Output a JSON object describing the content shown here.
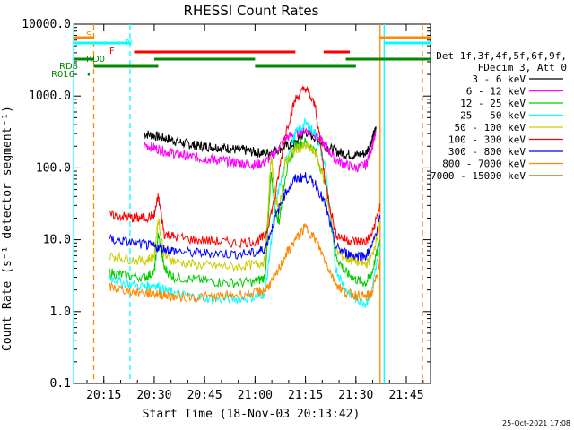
{
  "chart_data": {
    "type": "line",
    "title": "RHESSI Count Rates",
    "xlabel": "Start Time (18-Nov-03 20:13:42)",
    "ylabel": "Count Rate (s⁻¹ detector segment⁻¹)",
    "yscale": "log",
    "ylim": [
      0.1,
      10000
    ],
    "xlim_minutes": [
      20.1,
      21.87
    ],
    "xticks": [
      {
        "t": 20.25,
        "label": "20:15"
      },
      {
        "t": 20.5,
        "label": "20:30"
      },
      {
        "t": 20.75,
        "label": "20:45"
      },
      {
        "t": 21.0,
        "label": "21:00"
      },
      {
        "t": 21.25,
        "label": "21:15"
      },
      {
        "t": 21.5,
        "label": "21:30"
      },
      {
        "t": 21.75,
        "label": "21:45"
      }
    ],
    "yticks": [
      {
        "v": 0.1,
        "label": "0.1"
      },
      {
        "v": 1,
        "label": "1.0"
      },
      {
        "v": 10,
        "label": "10.0"
      },
      {
        "v": 100,
        "label": "100.0"
      },
      {
        "v": 1000,
        "label": "1000.0"
      },
      {
        "v": 10000,
        "label": "10000.0"
      }
    ],
    "legend_header": [
      "Det 1f,3f,4f,5f,6f,9f,",
      "FDecim 3, Att 0"
    ],
    "series": [
      {
        "name": "3 - 6 keV",
        "color": "#000000",
        "x": [
          20.45,
          20.5,
          20.55,
          20.6,
          20.65,
          20.7,
          20.75,
          20.8,
          20.85,
          20.9,
          20.95,
          21.0,
          21.05,
          21.1,
          21.15,
          21.2,
          21.25,
          21.3,
          21.35,
          21.4,
          21.45,
          21.5,
          21.55,
          21.58,
          21.6
        ],
        "y": [
          300,
          280,
          260,
          240,
          220,
          205,
          200,
          195,
          190,
          180,
          175,
          165,
          160,
          175,
          200,
          220,
          320,
          260,
          200,
          170,
          155,
          150,
          160,
          250,
          350
        ]
      },
      {
        "name": "6 - 12 keV",
        "color": "#ff00ff",
        "x": [
          20.45,
          20.5,
          20.55,
          20.6,
          20.65,
          20.7,
          20.75,
          20.8,
          20.85,
          20.9,
          20.95,
          21.0,
          21.05,
          21.1,
          21.15,
          21.2,
          21.25,
          21.3,
          21.35,
          21.4,
          21.45,
          21.5,
          21.55,
          21.58,
          21.6
        ],
        "y": [
          210,
          190,
          170,
          160,
          150,
          140,
          135,
          130,
          125,
          120,
          115,
          110,
          120,
          160,
          260,
          300,
          340,
          290,
          200,
          130,
          110,
          100,
          110,
          200,
          300
        ]
      },
      {
        "name": "12 - 25 keV",
        "color": "#00cc00",
        "x": [
          20.28,
          20.35,
          20.45,
          20.5,
          20.52,
          20.55,
          20.6,
          20.7,
          20.8,
          20.9,
          21.0,
          21.05,
          21.08,
          21.1,
          21.12,
          21.15,
          21.2,
          21.25,
          21.3,
          21.35,
          21.4,
          21.45,
          21.5,
          21.55,
          21.58,
          21.62
        ],
        "y": [
          3.5,
          3.2,
          3.0,
          3.5,
          12,
          4.0,
          3.0,
          2.8,
          2.6,
          2.5,
          2.6,
          3.0,
          90,
          25,
          18,
          80,
          200,
          230,
          170,
          60,
          6,
          3.5,
          2.8,
          2.5,
          3.5,
          10
        ]
      },
      {
        "name": "25 - 50 keV",
        "color": "#00ffff",
        "x": [
          20.28,
          20.35,
          20.45,
          20.5,
          20.55,
          20.6,
          20.7,
          20.8,
          20.9,
          21.0,
          21.05,
          21.1,
          21.15,
          21.2,
          21.25,
          21.3,
          21.35,
          21.4,
          21.45,
          21.5,
          21.55,
          21.58,
          21.62
        ],
        "y": [
          3.0,
          2.5,
          2.2,
          2.4,
          2.0,
          1.8,
          1.6,
          1.5,
          1.5,
          1.6,
          1.8,
          30,
          120,
          300,
          420,
          300,
          100,
          4,
          2.0,
          1.5,
          1.3,
          2.0,
          8
        ]
      },
      {
        "name": "50 - 100 keV",
        "color": "#cccc00",
        "x": [
          20.28,
          20.35,
          20.45,
          20.5,
          20.52,
          20.55,
          20.6,
          20.7,
          20.8,
          20.9,
          21.0,
          21.05,
          21.08,
          21.1,
          21.12,
          21.15,
          21.2,
          21.25,
          21.3,
          21.35,
          21.4,
          21.45,
          21.5,
          21.55,
          21.58,
          21.62
        ],
        "y": [
          6,
          5.5,
          5,
          6,
          20,
          6,
          5,
          4.5,
          4.3,
          4.2,
          4.5,
          5,
          150,
          40,
          25,
          120,
          180,
          200,
          160,
          60,
          7,
          5.5,
          5,
          4.5,
          6,
          16
        ]
      },
      {
        "name": "100 - 300 keV",
        "color": "#ff0000",
        "x": [
          20.28,
          20.35,
          20.4,
          20.45,
          20.5,
          20.52,
          20.55,
          20.6,
          20.7,
          20.8,
          20.9,
          21.0,
          21.05,
          21.1,
          21.15,
          21.2,
          21.25,
          21.3,
          21.35,
          21.4,
          21.45,
          21.5,
          21.55,
          21.58,
          21.62
        ],
        "y": [
          22,
          21,
          20,
          20,
          22,
          40,
          12,
          11,
          10,
          9.5,
          9,
          9.5,
          11,
          40,
          300,
          900,
          1300,
          700,
          60,
          12,
          10,
          9.5,
          9.5,
          12,
          30
        ]
      },
      {
        "name": "300 - 800 keV",
        "color": "#0000ff",
        "x": [
          20.28,
          20.35,
          20.45,
          20.5,
          20.55,
          20.6,
          20.7,
          20.8,
          20.9,
          21.0,
          21.05,
          21.1,
          21.15,
          21.2,
          21.25,
          21.3,
          21.35,
          21.4,
          21.45,
          21.5,
          21.55,
          21.58,
          21.62
        ],
        "y": [
          10,
          9.5,
          8.5,
          8.0,
          7.5,
          7.0,
          6.5,
          6.5,
          6.3,
          6.5,
          7.5,
          20,
          45,
          70,
          75,
          60,
          30,
          8,
          6.5,
          6,
          6,
          8,
          20
        ]
      },
      {
        "name": "800 - 7000 keV",
        "color": "#ff8800",
        "x": [
          20.28,
          20.35,
          20.45,
          20.5,
          20.55,
          20.6,
          20.7,
          20.8,
          20.9,
          21.0,
          21.05,
          21.1,
          21.15,
          21.2,
          21.25,
          21.3,
          21.35,
          21.4,
          21.45,
          21.5,
          21.55,
          21.58,
          21.62
        ],
        "y": [
          2.2,
          2.0,
          1.8,
          1.8,
          1.7,
          1.6,
          1.6,
          1.6,
          1.7,
          1.8,
          2.0,
          3,
          6,
          10,
          15,
          10,
          5,
          2.5,
          1.8,
          1.7,
          1.6,
          1.8,
          5
        ]
      },
      {
        "name": "7000 - 15000 keV",
        "color": "#996600",
        "x": [],
        "y": []
      }
    ],
    "state_bars": [
      {
        "label": "S",
        "color": "#ff8800",
        "segments": [
          [
            20.1,
            20.2
          ],
          [
            21.62,
            21.87
          ]
        ]
      },
      {
        "label": "N",
        "color": "#00ffff",
        "segments": [
          [
            20.1,
            20.38
          ],
          [
            21.64,
            21.87
          ]
        ]
      },
      {
        "label": "F",
        "color": "#ff0000",
        "segments": [
          [
            20.4,
            21.2
          ],
          [
            21.34,
            21.47
          ]
        ]
      },
      {
        "label": "RD0",
        "color": "#008800",
        "segments": [
          [
            20.1,
            20.2
          ],
          [
            20.5,
            21.0
          ],
          [
            21.45,
            21.87
          ]
        ]
      },
      {
        "label": "RD8",
        "color": "#008800",
        "segments": [
          [
            20.2,
            20.52
          ],
          [
            21.0,
            21.5
          ]
        ]
      },
      {
        "label": "R016",
        "color": "#008800",
        "segments": [
          [
            20.17,
            20.18
          ]
        ]
      }
    ],
    "vertical_markers": [
      {
        "t": 20.1,
        "color": "#00ffff",
        "style": "solid"
      },
      {
        "t": 20.2,
        "color": "#ff8800",
        "style": "dashed"
      },
      {
        "t": 20.38,
        "color": "#00ffff",
        "style": "dashed"
      },
      {
        "t": 21.62,
        "color": "#ff8800",
        "style": "solid"
      },
      {
        "t": 21.64,
        "color": "#00ffff",
        "style": "solid"
      },
      {
        "t": 21.83,
        "color": "#ff8800",
        "style": "dashed"
      }
    ]
  },
  "footer": {
    "timestamp": "25-Oct-2021 17:08"
  }
}
